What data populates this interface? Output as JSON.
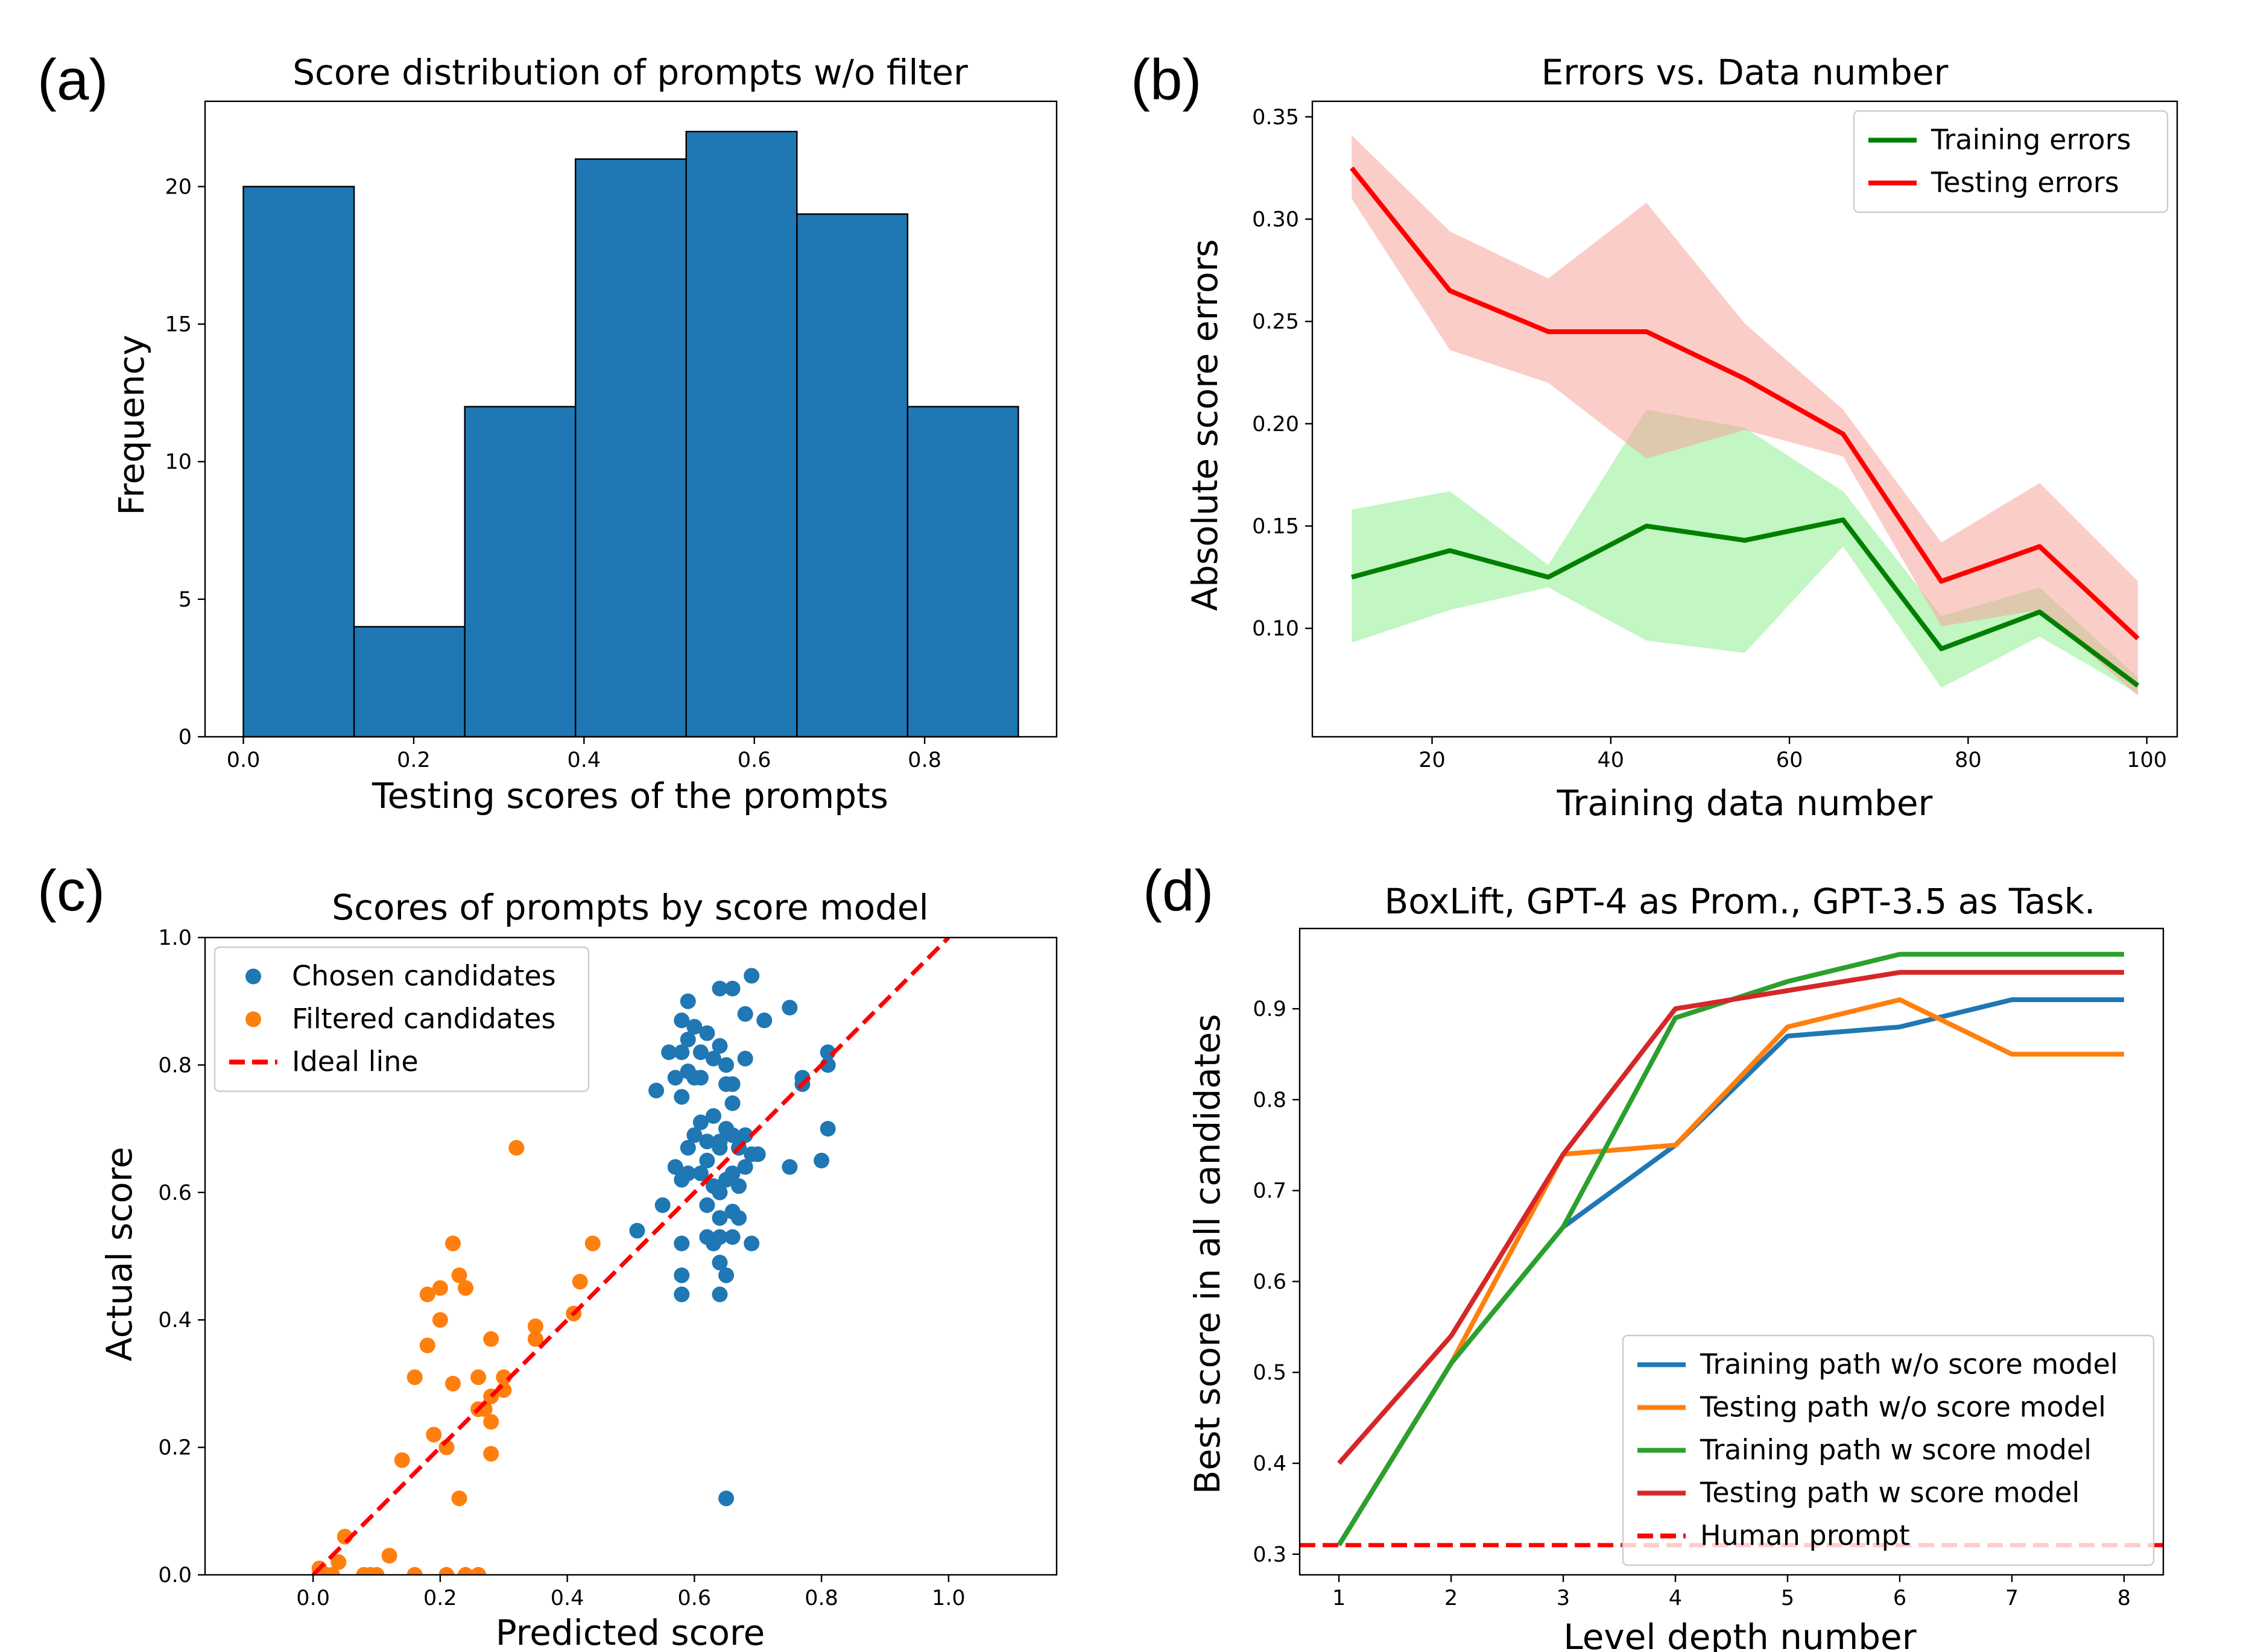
{
  "chart_data": [
    {
      "panel_label": "(a)",
      "type": "bar",
      "title": "Score distribution of prompts w/o filter",
      "xlabel": "Testing scores of the prompts",
      "ylabel": "Frequency",
      "bin_edges": [
        0.0,
        0.13,
        0.26,
        0.39,
        0.52,
        0.65,
        0.78,
        0.91
      ],
      "values": [
        20,
        4,
        12,
        21,
        22,
        19,
        12
      ],
      "xlim": [
        -0.045,
        0.955
      ],
      "ylim": [
        0,
        23.1
      ],
      "xticks": [
        0.0,
        0.2,
        0.4,
        0.6,
        0.8
      ],
      "xtick_labels": [
        "0.0",
        "0.2",
        "0.4",
        "0.6",
        "0.8"
      ],
      "yticks": [
        0,
        5,
        10,
        15,
        20
      ],
      "ytick_labels": [
        "0",
        "5",
        "10",
        "15",
        "20"
      ],
      "colors": {
        "bar": "#1f77b4",
        "edge": "#000000"
      }
    },
    {
      "panel_label": "(b)",
      "type": "line",
      "title": "Errors vs. Data number",
      "xlabel": "Training data number",
      "ylabel": "Absolute score errors",
      "x": [
        11,
        22,
        33,
        44,
        55,
        66,
        77,
        88,
        99
      ],
      "series": [
        {
          "name": "Training errors",
          "color": "#007f00",
          "band_color": "#90ee90",
          "values": [
            0.125,
            0.138,
            0.125,
            0.15,
            0.143,
            0.153,
            0.09,
            0.108,
            0.072
          ],
          "lower": [
            0.093,
            0.109,
            0.12,
            0.094,
            0.088,
            0.14,
            0.071,
            0.096,
            0.068
          ],
          "upper": [
            0.158,
            0.167,
            0.131,
            0.207,
            0.198,
            0.167,
            0.106,
            0.12,
            0.076
          ]
        },
        {
          "name": "Testing errors",
          "color": "#ff0000",
          "band_color": "#f8a49a",
          "values": [
            0.325,
            0.265,
            0.245,
            0.245,
            0.222,
            0.195,
            0.123,
            0.14,
            0.095
          ],
          "lower": [
            0.31,
            0.236,
            0.22,
            0.183,
            0.197,
            0.184,
            0.101,
            0.109,
            0.067
          ],
          "upper": [
            0.341,
            0.294,
            0.271,
            0.308,
            0.249,
            0.207,
            0.142,
            0.171,
            0.123
          ]
        }
      ],
      "xlim": [
        6.6,
        103.4
      ],
      "ylim": [
        0.047,
        0.3576
      ],
      "xticks": [
        20,
        40,
        60,
        80,
        100
      ],
      "xtick_labels": [
        "20",
        "40",
        "60",
        "80",
        "100"
      ],
      "yticks": [
        0.1,
        0.15,
        0.2,
        0.25,
        0.3,
        0.35
      ],
      "ytick_labels": [
        "0.10",
        "0.15",
        "0.20",
        "0.25",
        "0.30",
        "0.35"
      ],
      "legend": "top-right"
    },
    {
      "panel_label": "(c)",
      "type": "scatter",
      "title": "Scores of prompts by score model",
      "xlabel": "Predicted score",
      "ylabel": "Actual score",
      "xlim": [
        -0.17,
        1.17
      ],
      "ylim": [
        0,
        1.0
      ],
      "xticks": [
        0.0,
        0.2,
        0.4,
        0.6,
        0.8,
        1.0
      ],
      "xtick_labels": [
        "0.0",
        "0.2",
        "0.4",
        "0.6",
        "0.8",
        "1.0"
      ],
      "yticks": [
        0.0,
        0.2,
        0.4,
        0.6,
        0.8,
        1.0
      ],
      "ytick_labels": [
        "0.0",
        "0.2",
        "0.4",
        "0.6",
        "0.8",
        "1.0"
      ],
      "legend": "top-left",
      "series": [
        {
          "name": "Chosen candidates",
          "color": "#1f77b4",
          "points": [
            [
              0.69,
              0.94
            ],
            [
              0.64,
              0.92
            ],
            [
              0.66,
              0.92
            ],
            [
              0.59,
              0.9
            ],
            [
              0.75,
              0.89
            ],
            [
              0.6,
              0.86
            ],
            [
              0.68,
              0.88
            ],
            [
              0.71,
              0.87
            ],
            [
              0.58,
              0.87
            ],
            [
              0.62,
              0.85
            ],
            [
              0.59,
              0.84
            ],
            [
              0.56,
              0.82
            ],
            [
              0.58,
              0.82
            ],
            [
              0.64,
              0.83
            ],
            [
              0.61,
              0.82
            ],
            [
              0.63,
              0.81
            ],
            [
              0.68,
              0.81
            ],
            [
              0.81,
              0.82
            ],
            [
              0.59,
              0.79
            ],
            [
              0.65,
              0.8
            ],
            [
              0.6,
              0.78
            ],
            [
              0.57,
              0.78
            ],
            [
              0.61,
              0.78
            ],
            [
              0.77,
              0.78
            ],
            [
              0.81,
              0.8
            ],
            [
              0.77,
              0.77
            ],
            [
              0.58,
              0.75
            ],
            [
              0.65,
              0.77
            ],
            [
              0.66,
              0.77
            ],
            [
              0.66,
              0.74
            ],
            [
              0.54,
              0.76
            ],
            [
              0.61,
              0.71
            ],
            [
              0.63,
              0.72
            ],
            [
              0.6,
              0.69
            ],
            [
              0.81,
              0.7
            ],
            [
              0.65,
              0.7
            ],
            [
              0.68,
              0.69
            ],
            [
              0.64,
              0.68
            ],
            [
              0.66,
              0.69
            ],
            [
              0.62,
              0.68
            ],
            [
              0.67,
              0.67
            ],
            [
              0.69,
              0.66
            ],
            [
              0.7,
              0.66
            ],
            [
              0.59,
              0.67
            ],
            [
              0.64,
              0.67
            ],
            [
              0.57,
              0.64
            ],
            [
              0.75,
              0.64
            ],
            [
              0.8,
              0.65
            ],
            [
              0.62,
              0.65
            ],
            [
              0.59,
              0.63
            ],
            [
              0.61,
              0.63
            ],
            [
              0.66,
              0.63
            ],
            [
              0.68,
              0.64
            ],
            [
              0.65,
              0.62
            ],
            [
              0.58,
              0.62
            ],
            [
              0.63,
              0.61
            ],
            [
              0.67,
              0.61
            ],
            [
              0.64,
              0.6
            ],
            [
              0.55,
              0.58
            ],
            [
              0.62,
              0.58
            ],
            [
              0.66,
              0.57
            ],
            [
              0.64,
              0.56
            ],
            [
              0.67,
              0.56
            ],
            [
              0.51,
              0.54
            ],
            [
              0.62,
              0.53
            ],
            [
              0.64,
              0.53
            ],
            [
              0.66,
              0.53
            ],
            [
              0.58,
              0.52
            ],
            [
              0.63,
              0.52
            ],
            [
              0.69,
              0.52
            ],
            [
              0.64,
              0.49
            ],
            [
              0.65,
              0.47
            ],
            [
              0.58,
              0.47
            ],
            [
              0.58,
              0.44
            ],
            [
              0.64,
              0.44
            ],
            [
              0.65,
              0.12
            ]
          ]
        },
        {
          "name": "Filtered candidates",
          "color": "#ff7f0e",
          "points": [
            [
              0.32,
              0.67
            ],
            [
              0.22,
              0.52
            ],
            [
              0.44,
              0.52
            ],
            [
              0.23,
              0.47
            ],
            [
              0.42,
              0.46
            ],
            [
              0.24,
              0.45
            ],
            [
              0.18,
              0.44
            ],
            [
              0.2,
              0.45
            ],
            [
              0.41,
              0.41
            ],
            [
              0.35,
              0.39
            ],
            [
              0.2,
              0.4
            ],
            [
              0.35,
              0.37
            ],
            [
              0.28,
              0.37
            ],
            [
              0.18,
              0.36
            ],
            [
              0.16,
              0.31
            ],
            [
              0.22,
              0.3
            ],
            [
              0.26,
              0.31
            ],
            [
              0.3,
              0.31
            ],
            [
              0.3,
              0.29
            ],
            [
              0.28,
              0.28
            ],
            [
              0.26,
              0.26
            ],
            [
              0.27,
              0.26
            ],
            [
              0.28,
              0.24
            ],
            [
              0.19,
              0.22
            ],
            [
              0.21,
              0.2
            ],
            [
              0.28,
              0.19
            ],
            [
              0.14,
              0.18
            ],
            [
              0.23,
              0.12
            ],
            [
              0.05,
              0.06
            ],
            [
              0.12,
              0.03
            ],
            [
              0.04,
              0.02
            ],
            [
              0.01,
              0.01
            ],
            [
              0.02,
              0.0
            ],
            [
              0.03,
              0.0
            ],
            [
              0.08,
              0.0
            ],
            [
              0.09,
              0.0
            ],
            [
              0.1,
              0.0
            ],
            [
              0.16,
              0.0
            ],
            [
              0.21,
              0.0
            ],
            [
              0.24,
              0.0
            ],
            [
              0.26,
              0.0
            ]
          ]
        },
        {
          "name": "Ideal line",
          "color": "#ff0000",
          "style": "dashed",
          "points": [
            [
              0.0,
              0.0
            ],
            [
              1.0,
              1.0
            ]
          ]
        }
      ]
    },
    {
      "panel_label": "(d)",
      "type": "line",
      "title": "BoxLift, GPT-4 as Prom., GPT-3.5 as Task.",
      "xlabel": "Level depth number",
      "ylabel": "Best score in all candidates",
      "x": [
        1,
        2,
        3,
        4,
        5,
        6,
        7,
        8
      ],
      "series": [
        {
          "name": "Training path w/o score model",
          "color": "#1f77b4",
          "values": [
            0.31,
            0.51,
            0.66,
            0.75,
            0.87,
            0.88,
            0.91,
            0.91
          ]
        },
        {
          "name": "Testing path w/o score model",
          "color": "#ff7f0e",
          "values": [
            0.31,
            0.51,
            0.74,
            0.75,
            0.88,
            0.91,
            0.85,
            0.85
          ]
        },
        {
          "name": "Training path w score model",
          "color": "#2ca02c",
          "values": [
            0.31,
            0.51,
            0.66,
            0.89,
            0.93,
            0.96,
            0.96,
            0.96
          ]
        },
        {
          "name": "Testing path w score model",
          "color": "#d62728",
          "values": [
            0.4,
            0.54,
            0.74,
            0.9,
            0.92,
            0.94,
            0.94,
            0.94
          ]
        },
        {
          "name": "Human prompt",
          "color": "#ff0000",
          "style": "dashed",
          "y_constant": 0.31
        }
      ],
      "xlim": [
        0.65,
        8.35
      ],
      "ylim": [
        0.2773,
        0.9883
      ],
      "xticks": [
        1,
        2,
        3,
        4,
        5,
        6,
        7,
        8
      ],
      "xtick_labels": [
        "1",
        "2",
        "3",
        "4",
        "5",
        "6",
        "7",
        "8"
      ],
      "yticks": [
        0.3,
        0.4,
        0.5,
        0.6,
        0.7,
        0.8,
        0.9
      ],
      "ytick_labels": [
        "0.3",
        "0.4",
        "0.5",
        "0.6",
        "0.7",
        "0.8",
        "0.9"
      ],
      "legend": "bottom-right"
    }
  ]
}
